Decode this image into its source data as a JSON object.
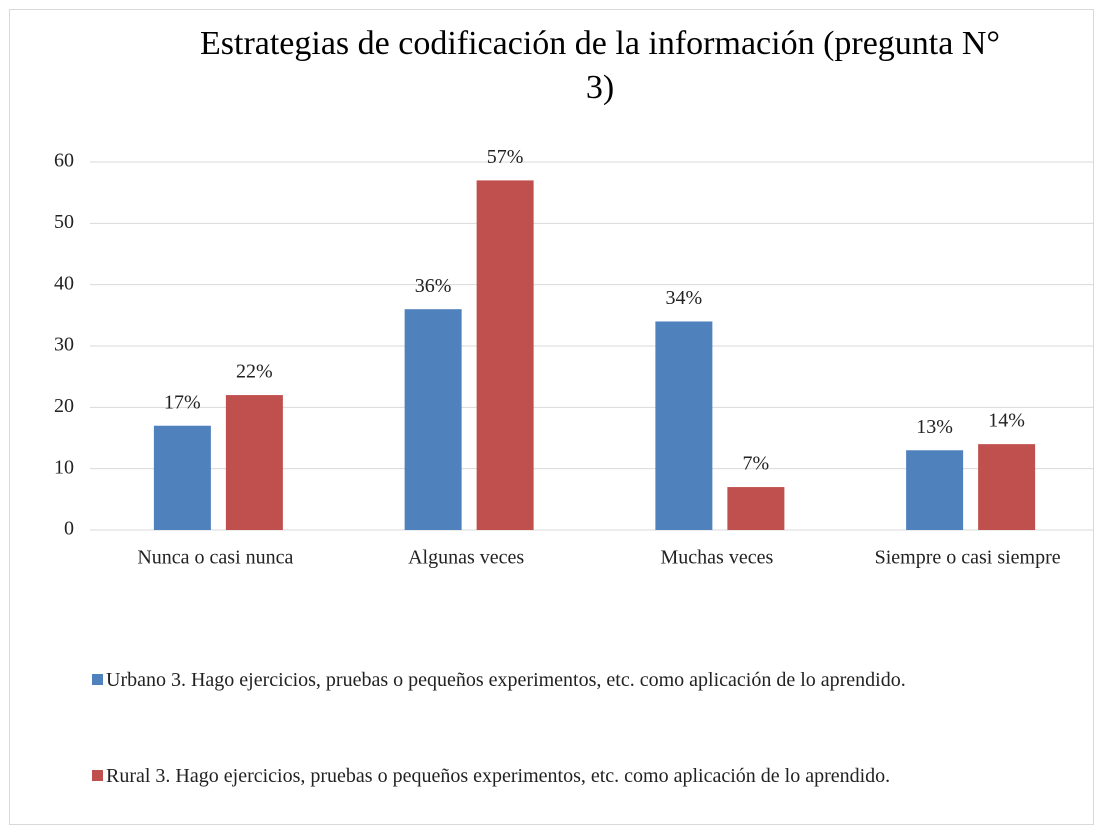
{
  "chart_data": {
    "type": "bar",
    "title": "Estrategias de codificación de la información (pregunta N° 3)",
    "categories": [
      "Nunca o casi nunca",
      "Algunas veces",
      "Muchas veces",
      "Siempre o casi siempre"
    ],
    "series": [
      {
        "name": "Urbano 3. Hago ejercicios, pruebas o pequeños experimentos, etc. como aplicación de lo aprendido.",
        "color": "#4f81bd",
        "values": [
          17,
          36,
          34,
          13
        ],
        "value_labels": [
          "17%",
          "36%",
          "34%",
          "13%"
        ]
      },
      {
        "name": "Rural 3. Hago ejercicios, pruebas o pequeños experimentos, etc. como aplicación de lo aprendido.",
        "color": "#c0504d",
        "values": [
          22,
          57,
          7,
          14
        ],
        "value_labels": [
          "22%",
          "57%",
          "7%",
          "14%"
        ]
      }
    ],
    "ylim": [
      0,
      60
    ],
    "yticks": [
      0,
      10,
      20,
      30,
      40,
      50,
      60
    ],
    "grid": true,
    "legend": "bottom"
  }
}
